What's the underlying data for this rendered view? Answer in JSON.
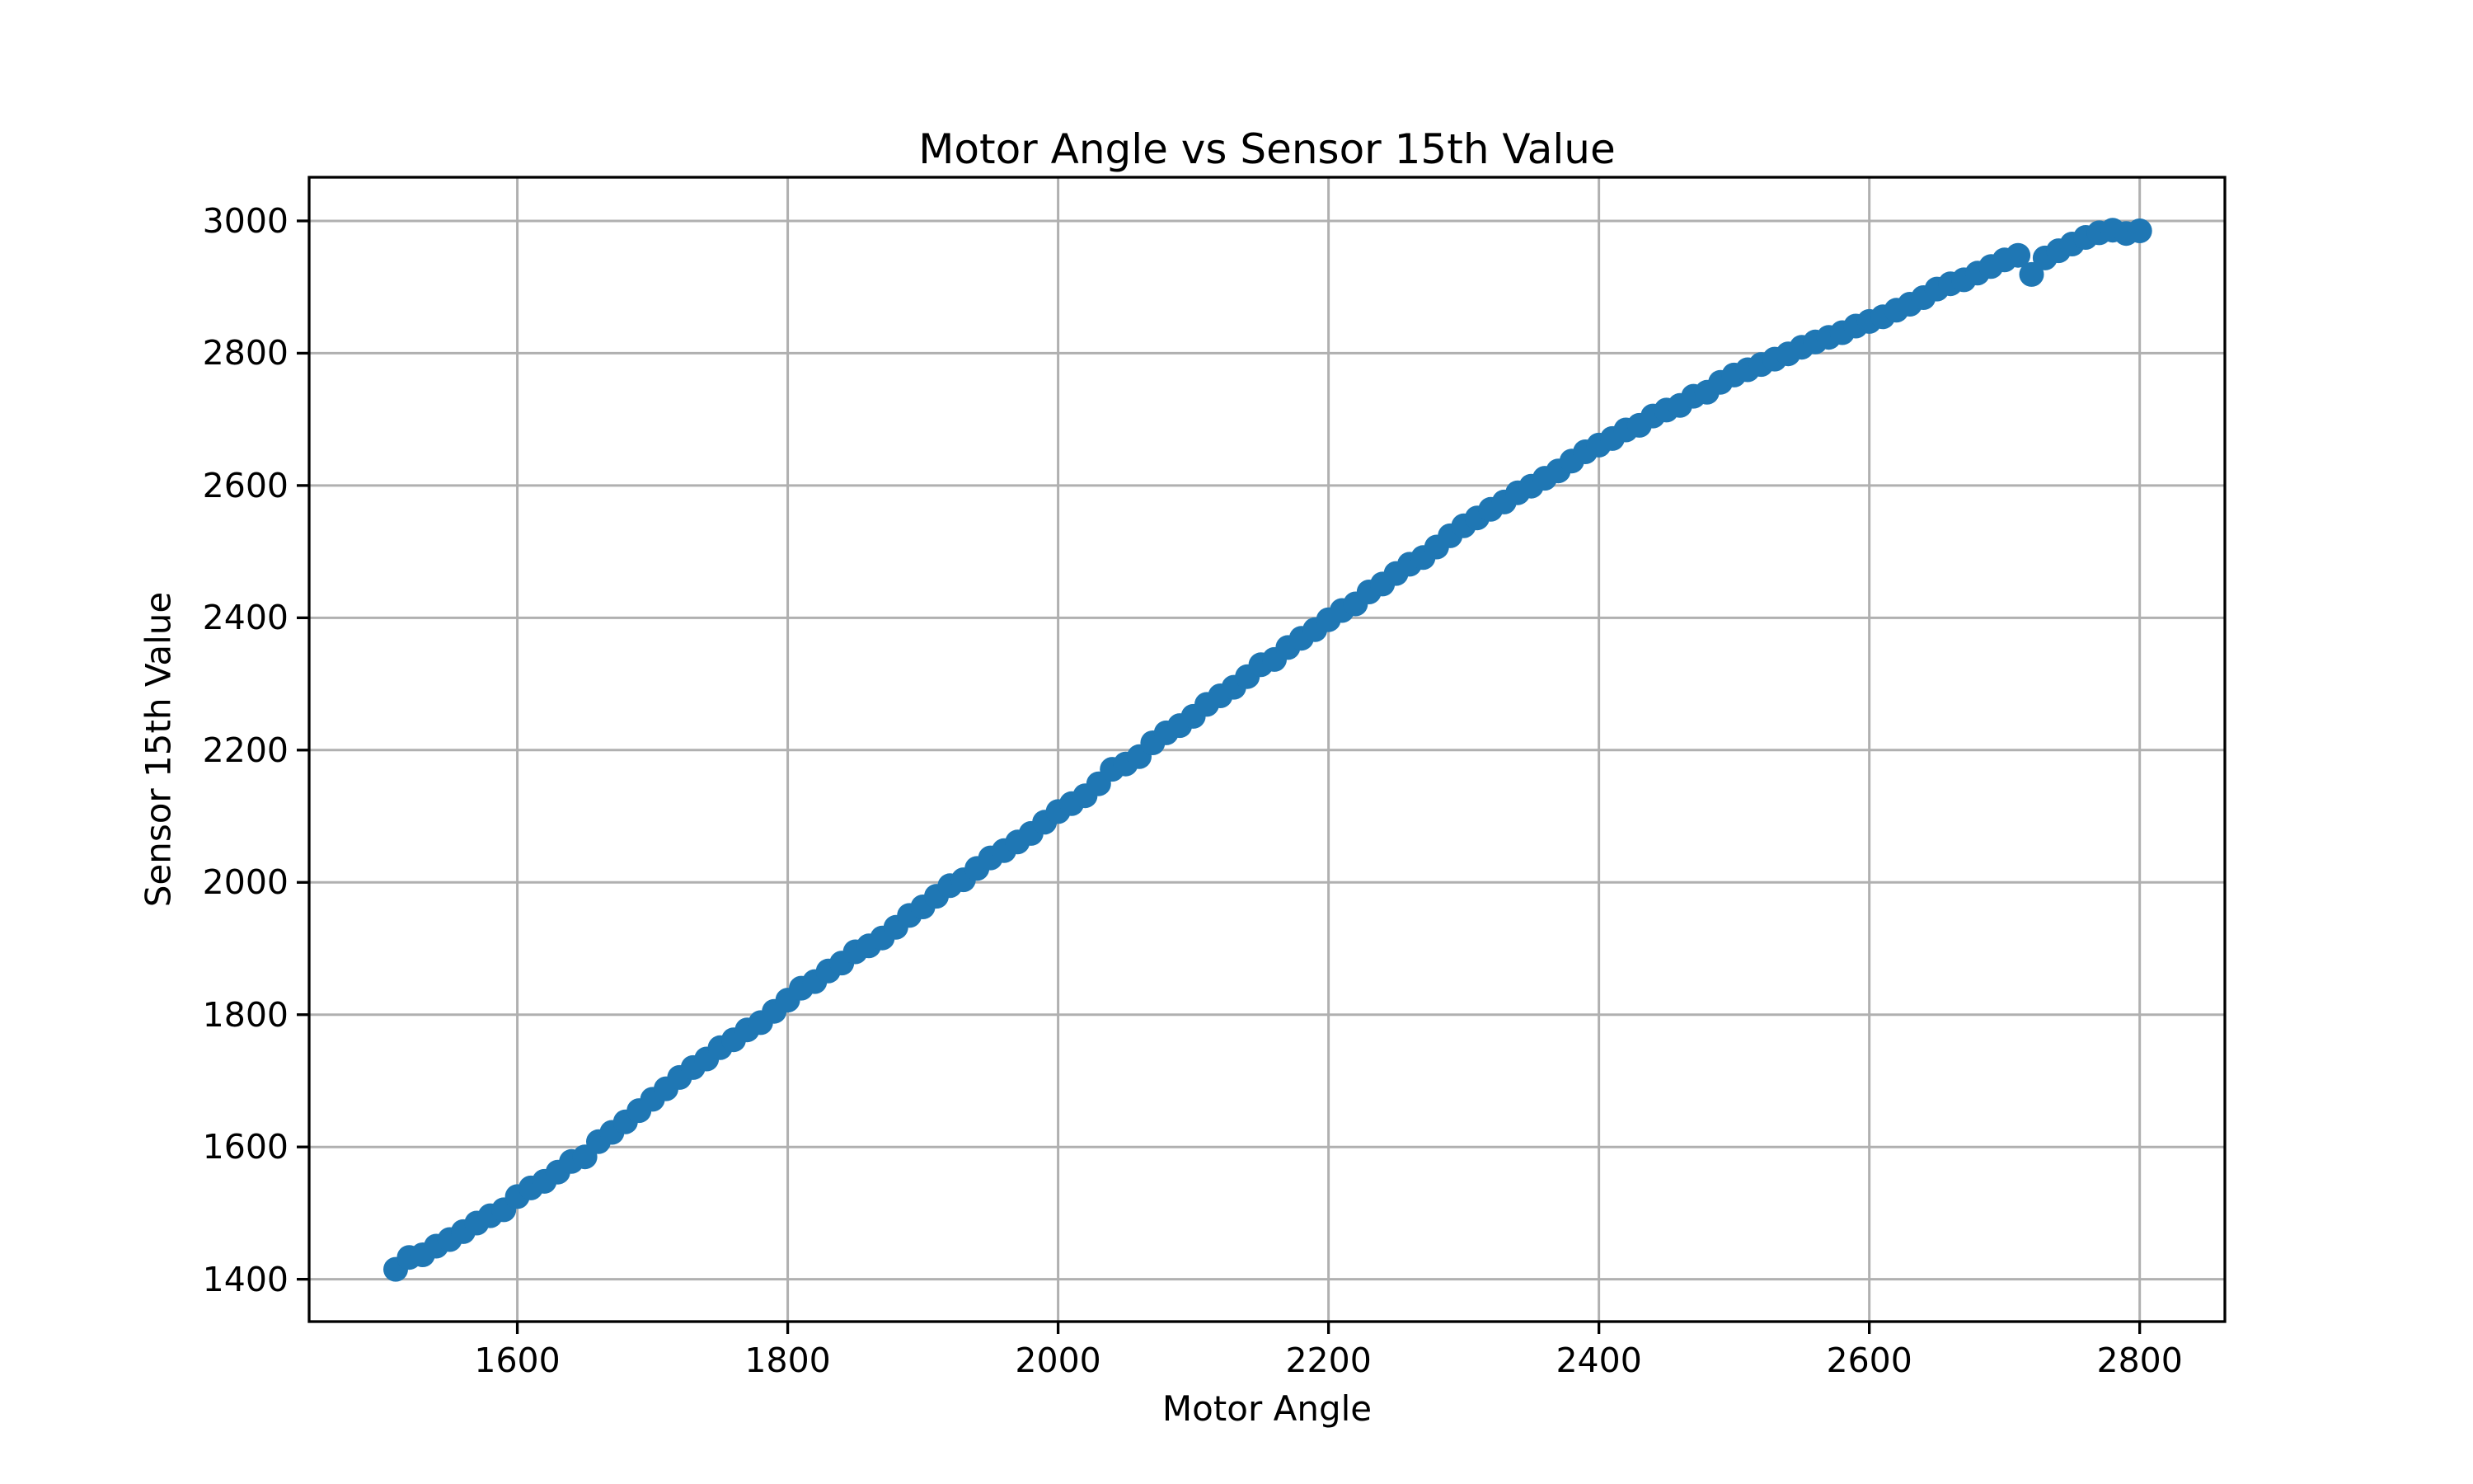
{
  "chart_data": {
    "type": "scatter",
    "title": "Motor Angle vs Sensor 15th Value",
    "xlabel": "Motor Angle",
    "ylabel": "Sensor 15th Value",
    "x_ticks": [
      1600,
      1800,
      2000,
      2200,
      2400,
      2600,
      2800
    ],
    "y_ticks": [
      1400,
      1600,
      1800,
      2000,
      2200,
      2400,
      2600,
      2800,
      3000
    ],
    "xlim": [
      1446,
      2863
    ],
    "ylim": [
      1336,
      3066
    ],
    "grid": true,
    "legend": "none",
    "marker_color": "#1f77b4",
    "grid_color": "#b0b0b0",
    "spine_color": "#000000",
    "background_color": "#ffffff",
    "points": [
      [
        1510,
        1415
      ],
      [
        1520,
        1433
      ],
      [
        1530,
        1437
      ],
      [
        1540,
        1450
      ],
      [
        1550,
        1460
      ],
      [
        1560,
        1472
      ],
      [
        1570,
        1485
      ],
      [
        1580,
        1496
      ],
      [
        1590,
        1505
      ],
      [
        1600,
        1525
      ],
      [
        1610,
        1538
      ],
      [
        1620,
        1548
      ],
      [
        1630,
        1562
      ],
      [
        1640,
        1578
      ],
      [
        1650,
        1585
      ],
      [
        1660,
        1608
      ],
      [
        1670,
        1622
      ],
      [
        1680,
        1638
      ],
      [
        1690,
        1655
      ],
      [
        1700,
        1672
      ],
      [
        1710,
        1688
      ],
      [
        1720,
        1705
      ],
      [
        1730,
        1720
      ],
      [
        1740,
        1733
      ],
      [
        1750,
        1750
      ],
      [
        1760,
        1762
      ],
      [
        1770,
        1777
      ],
      [
        1780,
        1788
      ],
      [
        1790,
        1805
      ],
      [
        1800,
        1822
      ],
      [
        1810,
        1840
      ],
      [
        1820,
        1850
      ],
      [
        1830,
        1866
      ],
      [
        1840,
        1878
      ],
      [
        1850,
        1895
      ],
      [
        1860,
        1904
      ],
      [
        1870,
        1916
      ],
      [
        1880,
        1932
      ],
      [
        1890,
        1950
      ],
      [
        1900,
        1963
      ],
      [
        1910,
        1979
      ],
      [
        1920,
        1995
      ],
      [
        1930,
        2004
      ],
      [
        1940,
        2021
      ],
      [
        1950,
        2037
      ],
      [
        1960,
        2048
      ],
      [
        1970,
        2061
      ],
      [
        1980,
        2074
      ],
      [
        1990,
        2091
      ],
      [
        2000,
        2107
      ],
      [
        2010,
        2119
      ],
      [
        2020,
        2131
      ],
      [
        2030,
        2149
      ],
      [
        2040,
        2171
      ],
      [
        2050,
        2179
      ],
      [
        2060,
        2190
      ],
      [
        2070,
        2211
      ],
      [
        2080,
        2226
      ],
      [
        2090,
        2237
      ],
      [
        2100,
        2251
      ],
      [
        2110,
        2269
      ],
      [
        2120,
        2282
      ],
      [
        2130,
        2295
      ],
      [
        2140,
        2311
      ],
      [
        2150,
        2329
      ],
      [
        2160,
        2337
      ],
      [
        2170,
        2355
      ],
      [
        2180,
        2369
      ],
      [
        2190,
        2382
      ],
      [
        2200,
        2397
      ],
      [
        2210,
        2411
      ],
      [
        2220,
        2421
      ],
      [
        2230,
        2439
      ],
      [
        2240,
        2451
      ],
      [
        2250,
        2467
      ],
      [
        2260,
        2481
      ],
      [
        2270,
        2491
      ],
      [
        2280,
        2507
      ],
      [
        2290,
        2524
      ],
      [
        2300,
        2539
      ],
      [
        2310,
        2551
      ],
      [
        2320,
        2564
      ],
      [
        2330,
        2575
      ],
      [
        2340,
        2589
      ],
      [
        2350,
        2599
      ],
      [
        2360,
        2611
      ],
      [
        2370,
        2622
      ],
      [
        2380,
        2637
      ],
      [
        2390,
        2651
      ],
      [
        2400,
        2661
      ],
      [
        2410,
        2671
      ],
      [
        2420,
        2684
      ],
      [
        2430,
        2691
      ],
      [
        2440,
        2705
      ],
      [
        2450,
        2714
      ],
      [
        2460,
        2721
      ],
      [
        2470,
        2735
      ],
      [
        2480,
        2741
      ],
      [
        2490,
        2756
      ],
      [
        2500,
        2767
      ],
      [
        2510,
        2775
      ],
      [
        2520,
        2783
      ],
      [
        2530,
        2791
      ],
      [
        2540,
        2799
      ],
      [
        2550,
        2809
      ],
      [
        2560,
        2817
      ],
      [
        2570,
        2824
      ],
      [
        2580,
        2831
      ],
      [
        2590,
        2841
      ],
      [
        2600,
        2848
      ],
      [
        2610,
        2855
      ],
      [
        2620,
        2865
      ],
      [
        2630,
        2874
      ],
      [
        2640,
        2884
      ],
      [
        2650,
        2897
      ],
      [
        2660,
        2905
      ],
      [
        2670,
        2911
      ],
      [
        2680,
        2921
      ],
      [
        2690,
        2931
      ],
      [
        2700,
        2941
      ],
      [
        2710,
        2948
      ],
      [
        2720,
        2919
      ],
      [
        2730,
        2944
      ],
      [
        2740,
        2955
      ],
      [
        2750,
        2965
      ],
      [
        2760,
        2975
      ],
      [
        2770,
        2982
      ],
      [
        2780,
        2986
      ],
      [
        2790,
        2981
      ],
      [
        2800,
        2985
      ]
    ]
  }
}
